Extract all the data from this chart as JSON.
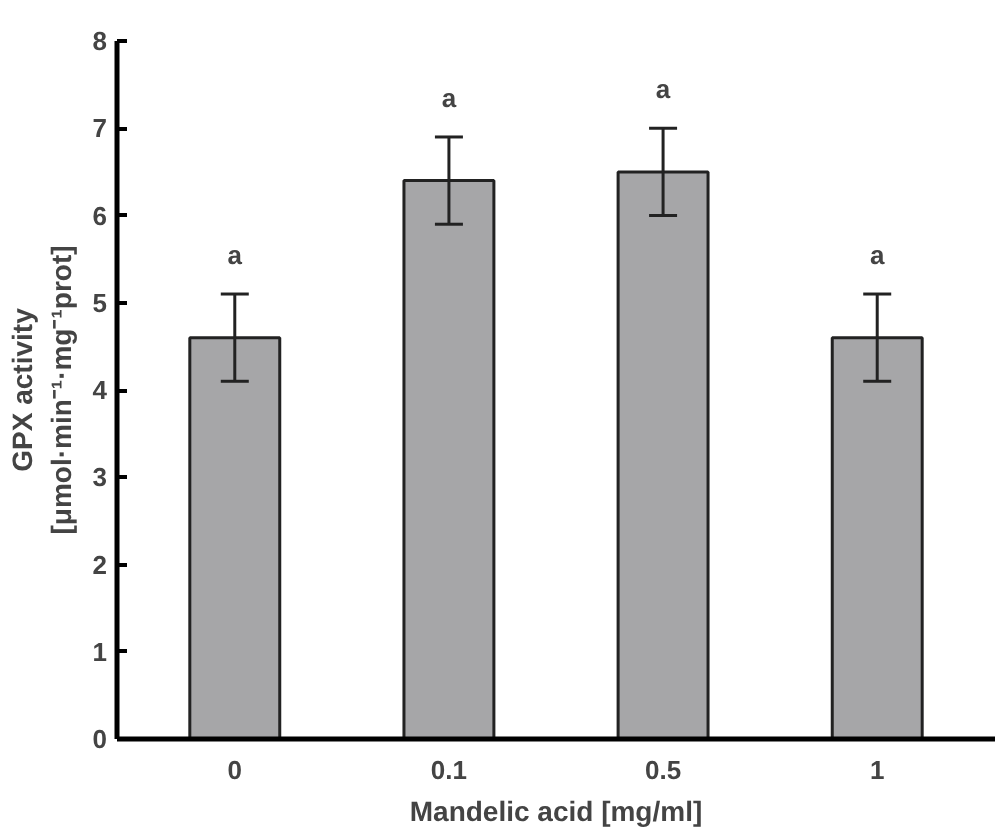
{
  "chart_data": {
    "type": "bar",
    "categories": [
      "0",
      "0.1",
      "0.5",
      "1"
    ],
    "values": [
      4.6,
      6.4,
      6.5,
      4.6
    ],
    "errors": [
      0.5,
      0.5,
      0.5,
      0.5
    ],
    "color": "#a6a6a8",
    "xlabel": "Mandelic acid [mg/ml]",
    "ylabel": "GPX activity\n[μmol·min⁻¹·mg⁻¹prot]",
    "ylim": [
      0,
      8
    ],
    "yticks": [
      0,
      1,
      2,
      3,
      4,
      5,
      6,
      7,
      8
    ],
    "grid": false,
    "annotations": [
      "a",
      "a",
      "a",
      "a"
    ]
  }
}
